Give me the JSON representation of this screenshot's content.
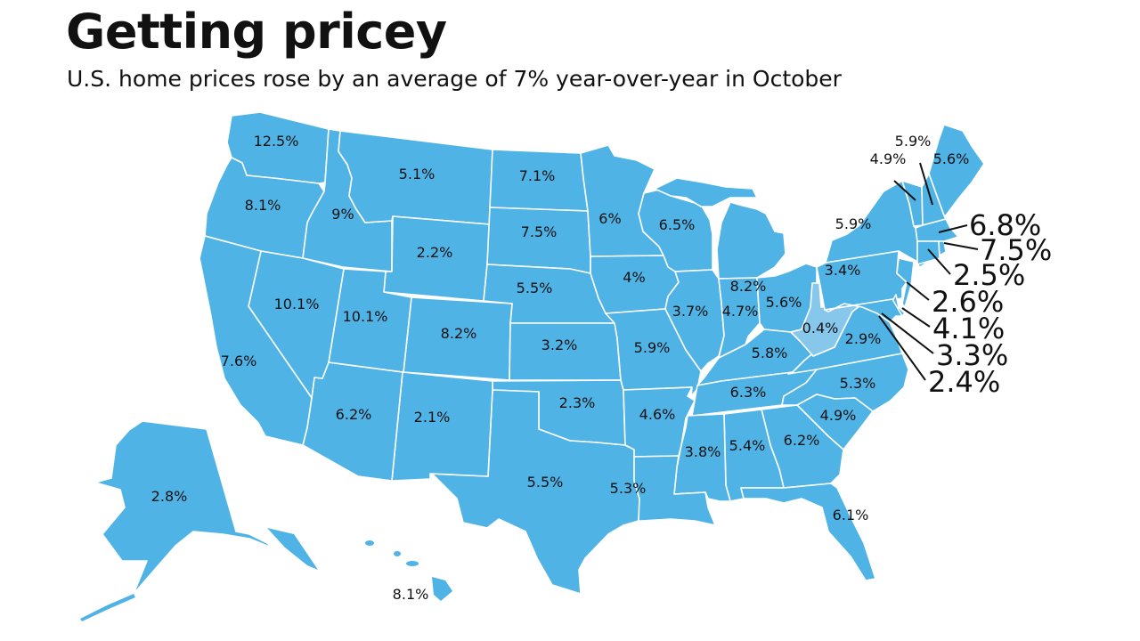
{
  "header": {
    "title": "Getting pricey",
    "subtitle": "U.S. home prices rose by an average of 7% year-over-year in October"
  },
  "colors": {
    "fill": "#4fb3e6",
    "fill_overrides": {
      "WV": "#88c7ec"
    },
    "border": "#ffffff",
    "label": "#111111"
  },
  "states": {
    "WA": "12.5%",
    "OR": "8.1%",
    "CA": "7.6%",
    "ID": "9%",
    "NV": "10.1%",
    "UT": "10.1%",
    "AZ": "6.2%",
    "MT": "5.1%",
    "WY": "2.2%",
    "CO": "8.2%",
    "NM": "2.1%",
    "ND": "7.1%",
    "SD": "7.5%",
    "NE": "5.5%",
    "KS": "3.2%",
    "OK": "2.3%",
    "TX": "5.5%",
    "MN": "6%",
    "IA": "4%",
    "MO": "5.9%",
    "AR": "4.6%",
    "LA": "5.3%",
    "WI": "6.5%",
    "IL": "3.7%",
    "MI": "8.2%",
    "IN": "4.7%",
    "OH": "5.6%",
    "KY": "5.8%",
    "TN": "6.3%",
    "MS": "3.8%",
    "AL": "5.4%",
    "GA": "6.2%",
    "FL": "6.1%",
    "SC": "4.9%",
    "NC": "5.3%",
    "VA": "2.9%",
    "WV": "0.4%",
    "PA": "3.4%",
    "NY": "5.9%",
    "VT": "4.9%",
    "NH": "5.9%",
    "ME": "5.6%",
    "MA": "6.8%",
    "RI": "7.5%",
    "CT": "2.5%",
    "NJ": "2.6%",
    "DE": "4.1%",
    "MD": "3.3%",
    "DC": "2.4%",
    "AK": "2.8%",
    "HI": "8.1%"
  }
}
